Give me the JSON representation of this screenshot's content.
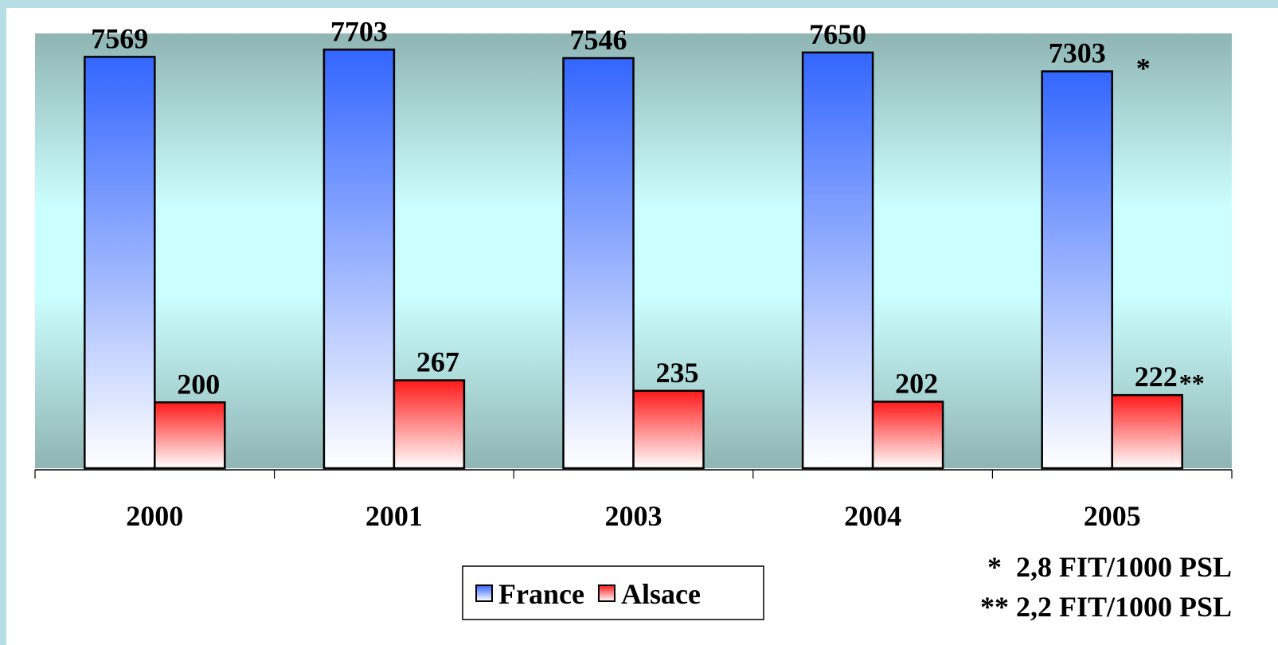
{
  "chart_data": {
    "type": "bar",
    "categories": [
      "2000",
      "2001",
      "2003",
      "2004",
      "2005"
    ],
    "series": [
      {
        "name": "France",
        "color": "#3366ff",
        "values": [
          7569,
          7703,
          7546,
          7650,
          7303
        ]
      },
      {
        "name": "Alsace",
        "color": "#ff1a1a",
        "axis": "y2",
        "values": [
          200,
          267,
          235,
          202,
          222
        ]
      }
    ],
    "ylim": [
      0,
      8000
    ],
    "y2lim": [
      0,
      1320
    ],
    "annotations": [
      "*",
      "**"
    ],
    "notes": [
      "*  2,8 FIT/1000 PSL",
      "** 2,2 FIT/1000 PSL"
    ],
    "legend": "bottom"
  }
}
